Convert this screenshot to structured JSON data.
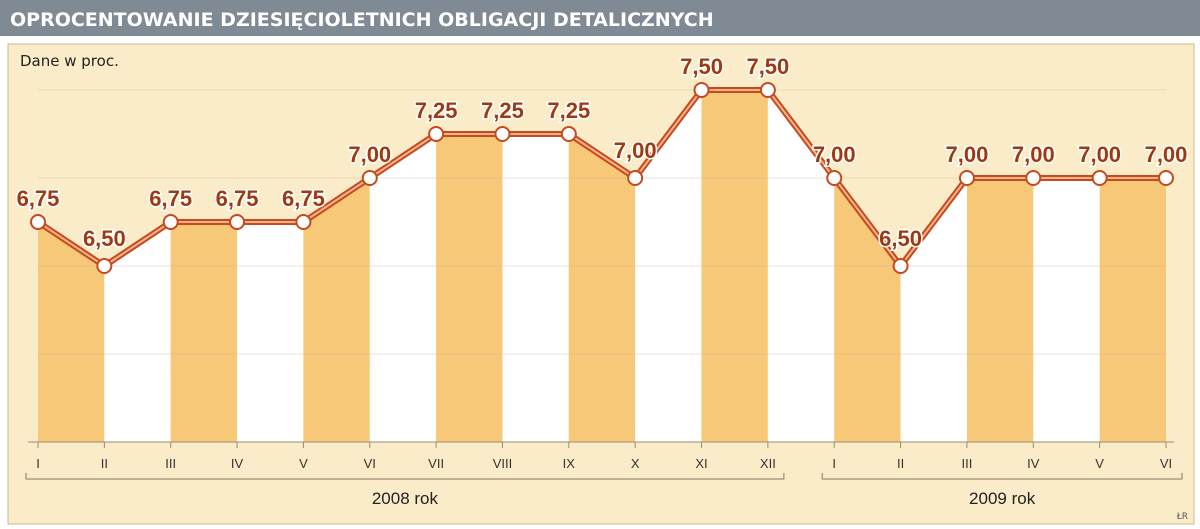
{
  "header": {
    "title": "OPROCENTOWANIE DZIESIĘCIOLETNICH OBLIGACJI DETALICZNYCH"
  },
  "chart_data": {
    "type": "line",
    "subtitle": "Dane w proc.",
    "categories": [
      "I",
      "II",
      "III",
      "IV",
      "V",
      "VI",
      "VII",
      "VIII",
      "IX",
      "X",
      "XI",
      "XII",
      "I",
      "II",
      "III",
      "IV",
      "V",
      "VI"
    ],
    "value_labels": [
      "6,75",
      "6,50",
      "6,75",
      "6,75",
      "6,75",
      "7,00",
      "7,25",
      "7,25",
      "7,25",
      "7,00",
      "7,50",
      "7,50",
      "7,00",
      "6,50",
      "7,00",
      "7,00",
      "7,00",
      "7,00"
    ],
    "values": [
      6.75,
      6.5,
      6.75,
      6.75,
      6.75,
      7.0,
      7.25,
      7.25,
      7.25,
      7.0,
      7.5,
      7.5,
      7.0,
      6.5,
      7.0,
      7.0,
      7.0,
      7.0
    ],
    "groups": [
      {
        "label": "2008 rok",
        "from": 0,
        "to": 11
      },
      {
        "label": "2009 rok",
        "from": 12,
        "to": 17
      }
    ],
    "ylim": [
      5.5,
      7.5
    ],
    "grid": true,
    "credit": "ŁR",
    "colors": {
      "header_bg": "#7f8a94",
      "header_text": "#ffffff",
      "panel_bg": "#fbecc9",
      "panel_border": "#c8b88d",
      "band_fill": "#f6c877",
      "line": "#c54a1e",
      "line_inner": "#f3b38d",
      "label": "#9c3a14",
      "grid": "#ceb898",
      "axis": "#9a8c70"
    }
  }
}
